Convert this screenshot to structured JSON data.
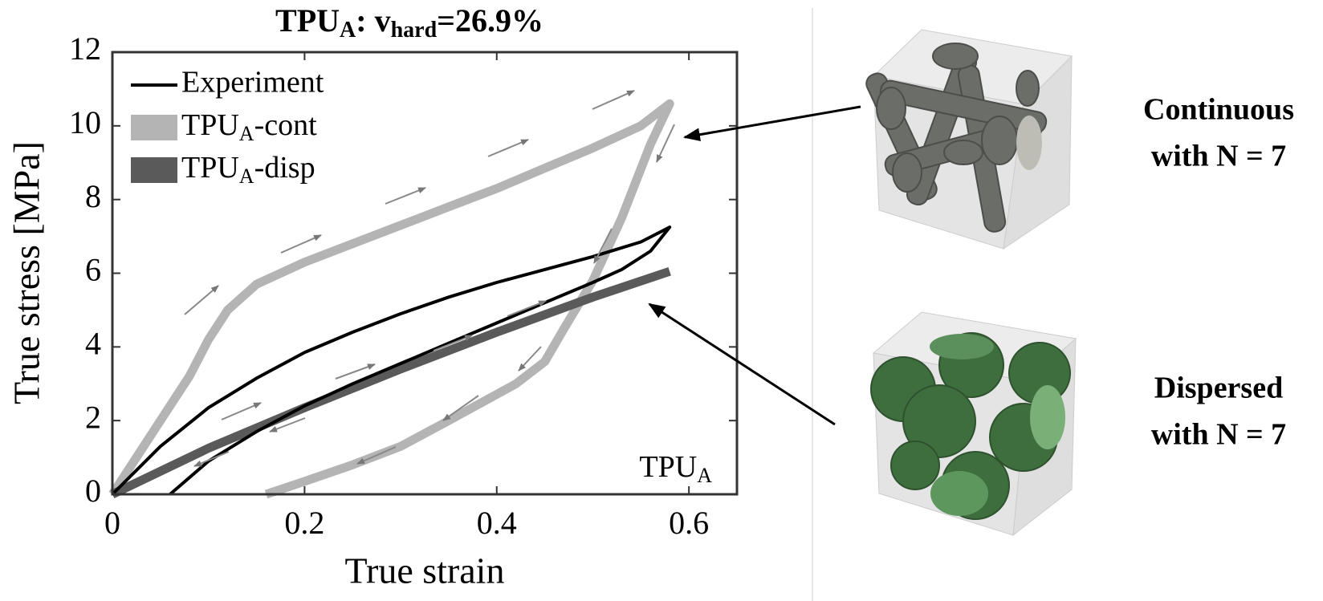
{
  "chart_data": {
    "type": "line",
    "title": [
      "TPU",
      "A",
      ": v",
      "hard",
      "=26.9%"
    ],
    "x_label": "True strain",
    "y_label": "True stress [MPa]",
    "annotation": [
      "TPU",
      "A"
    ],
    "xlim": [
      0,
      0.65
    ],
    "ylim": [
      0,
      12
    ],
    "xticks": [
      0,
      0.2,
      0.4,
      0.6
    ],
    "yticks": [
      0,
      2,
      4,
      6,
      8,
      10,
      12
    ],
    "legend": "upper left",
    "series": [
      {
        "name": "Experiment",
        "color": "#000000",
        "x": [
          0,
          0.05,
          0.1,
          0.15,
          0.2,
          0.25,
          0.3,
          0.35,
          0.4,
          0.45,
          0.5,
          0.55,
          0.58,
          0.56,
          0.53,
          0.5,
          0.45,
          0.4,
          0.35,
          0.3,
          0.25,
          0.2,
          0.15,
          0.1,
          0.06
        ],
        "values": [
          0,
          1.3,
          2.35,
          3.15,
          3.85,
          4.4,
          4.9,
          5.35,
          5.75,
          6.1,
          6.45,
          6.85,
          7.25,
          6.6,
          6.1,
          5.75,
          5.2,
          4.65,
          4.1,
          3.55,
          3.0,
          2.4,
          1.7,
          0.9,
          0
        ]
      },
      {
        "name": [
          "TPU",
          "A",
          "-cont"
        ],
        "color": "#b4b4b4",
        "x": [
          0,
          0.05,
          0.08,
          0.1,
          0.12,
          0.15,
          0.2,
          0.25,
          0.3,
          0.35,
          0.4,
          0.45,
          0.5,
          0.55,
          0.58,
          0.56,
          0.53,
          0.5,
          0.47,
          0.45,
          0.42,
          0.35,
          0.3,
          0.25,
          0.2,
          0.16
        ],
        "values": [
          0,
          2.0,
          3.2,
          4.2,
          5.0,
          5.7,
          6.3,
          6.8,
          7.3,
          7.8,
          8.3,
          8.85,
          9.4,
          10.0,
          10.6,
          9.5,
          7.5,
          5.8,
          4.5,
          3.6,
          3.0,
          2.0,
          1.3,
          0.8,
          0.35,
          0
        ]
      },
      {
        "name": [
          "TPU",
          "A",
          "-disp"
        ],
        "color": "#5a5a5a",
        "x": [
          0,
          0.1,
          0.2,
          0.3,
          0.4,
          0.5,
          0.58
        ],
        "values": [
          0,
          1.25,
          2.35,
          3.4,
          4.4,
          5.35,
          6.05
        ]
      }
    ]
  },
  "illustrations": {
    "continuous": [
      "Continuous",
      "with N = 7"
    ],
    "dispersed": [
      "Dispersed",
      "with N = 7"
    ]
  }
}
